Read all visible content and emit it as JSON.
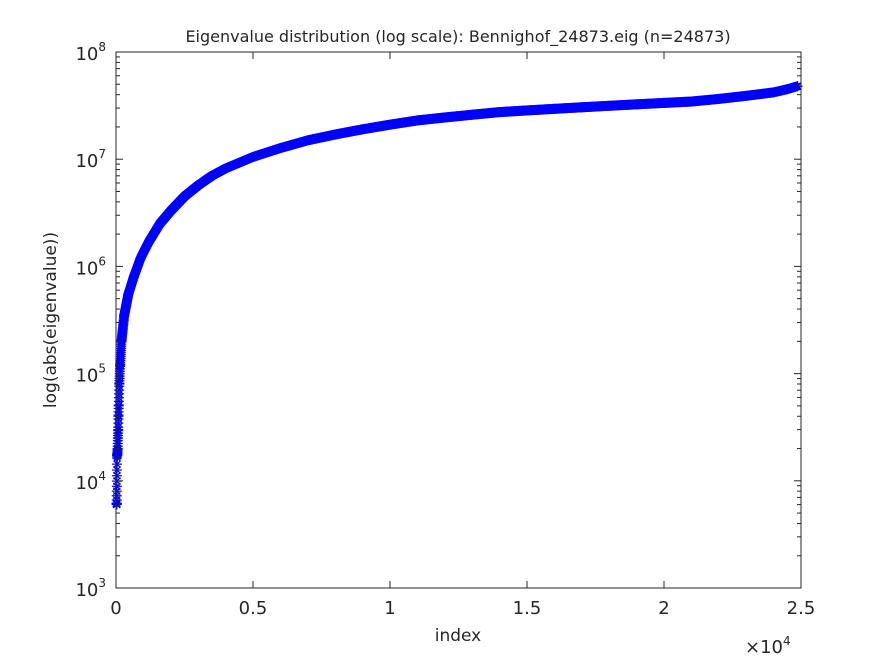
{
  "chart_data": {
    "type": "scatter",
    "title": "Eigenvalue distribution (log scale): Bennighof_24873.eig (n=24873)",
    "xlabel": "index",
    "ylabel": "log(abs(eigenvalue))",
    "x_multiplier_label": "×10",
    "x_multiplier_exponent": "4",
    "xlim": [
      0,
      25000
    ],
    "ylim": [
      1000,
      100000000
    ],
    "yscale": "log",
    "grid": false,
    "legend": "none",
    "marker": "asterisk",
    "color": "#0000ff",
    "x_ticks": [
      {
        "value": 0,
        "label": "0"
      },
      {
        "value": 5000,
        "label": "0.5"
      },
      {
        "value": 10000,
        "label": "1"
      },
      {
        "value": 15000,
        "label": "1.5"
      },
      {
        "value": 20000,
        "label": "2"
      },
      {
        "value": 25000,
        "label": "2.5"
      }
    ],
    "y_ticks": [
      {
        "value": 1000,
        "base": "10",
        "exp": "3"
      },
      {
        "value": 10000,
        "base": "10",
        "exp": "4"
      },
      {
        "value": 100000,
        "base": "10",
        "exp": "5"
      },
      {
        "value": 1000000,
        "base": "10",
        "exp": "6"
      },
      {
        "value": 10000000,
        "base": "10",
        "exp": "7"
      },
      {
        "value": 100000000,
        "base": "10",
        "exp": "8"
      }
    ],
    "points": [
      [
        20,
        6200
      ],
      [
        25,
        6000
      ],
      [
        40,
        17000
      ],
      [
        50,
        18000
      ],
      [
        60,
        20000
      ],
      [
        70,
        25000
      ],
      [
        80,
        30000
      ],
      [
        90,
        40000
      ],
      [
        100,
        50000
      ],
      [
        120,
        80000
      ],
      [
        150,
        120000
      ],
      [
        200,
        200000
      ],
      [
        300,
        350000
      ],
      [
        450,
        550000
      ],
      [
        650,
        800000
      ],
      [
        900,
        1200000
      ],
      [
        1200,
        1700000
      ],
      [
        1600,
        2500000
      ],
      [
        2000,
        3300000
      ],
      [
        2500,
        4500000
      ],
      [
        3000,
        5700000
      ],
      [
        3500,
        7000000
      ],
      [
        4000,
        8200000
      ],
      [
        5000,
        10500000
      ],
      [
        6000,
        12700000
      ],
      [
        7000,
        15000000
      ],
      [
        8000,
        17000000
      ],
      [
        9000,
        19000000
      ],
      [
        10000,
        21000000
      ],
      [
        11000,
        23000000
      ],
      [
        12000,
        24500000
      ],
      [
        13000,
        26000000
      ],
      [
        14000,
        27500000
      ],
      [
        15000,
        28500000
      ],
      [
        16000,
        29500000
      ],
      [
        17000,
        30500000
      ],
      [
        18000,
        31500000
      ],
      [
        19000,
        32500000
      ],
      [
        20000,
        33500000
      ],
      [
        21000,
        34500000
      ],
      [
        22000,
        36500000
      ],
      [
        23000,
        39000000
      ],
      [
        24000,
        42000000
      ],
      [
        24500,
        45000000
      ],
      [
        24873,
        48000000
      ]
    ]
  }
}
